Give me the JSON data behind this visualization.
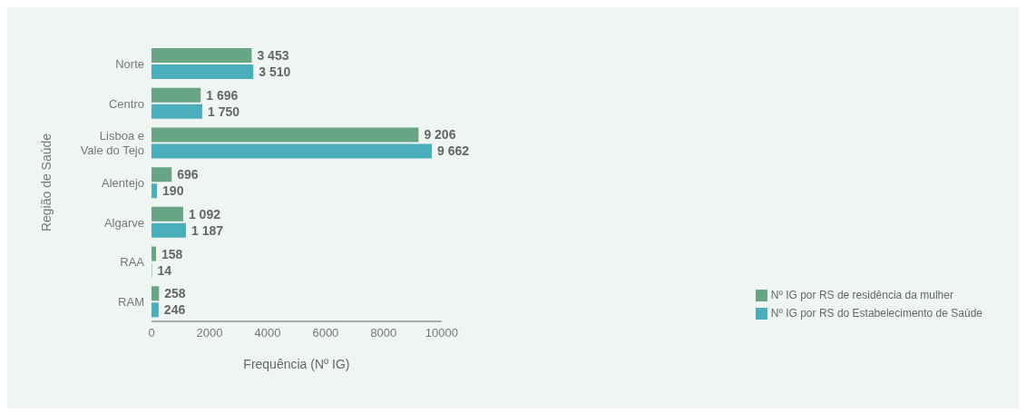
{
  "chart_data": {
    "type": "bar",
    "orientation": "horizontal",
    "xlabel": "Frequência (Nº IG)",
    "ylabel": "Região de Saúde",
    "categories": [
      "Norte",
      "Centro",
      "Lisboa e Vale do Tejo",
      "Alentejo",
      "Algarve",
      "RAA",
      "RAM"
    ],
    "series": [
      {
        "name": "Nº IG por RS de residência da mulher",
        "color": "#67a584",
        "values": [
          3453,
          1696,
          9206,
          696,
          1092,
          158,
          258
        ],
        "value_labels": [
          "3 453",
          "1 696",
          "9 206",
          "696",
          "1 092",
          "158",
          "258"
        ]
      },
      {
        "name": "Nº IG por RS do Estabelecimento de Saúde",
        "color": "#4aafbb",
        "values": [
          3510,
          1750,
          9662,
          190,
          1187,
          14,
          246
        ],
        "value_labels": [
          "3 510",
          "1 750",
          "9 662",
          "190",
          "1 187",
          "14",
          "246"
        ]
      }
    ],
    "xlim": [
      0,
      10000
    ],
    "xticks": [
      0,
      2000,
      4000,
      6000,
      8000,
      10000
    ],
    "grid": false,
    "legend": "bottom right"
  }
}
